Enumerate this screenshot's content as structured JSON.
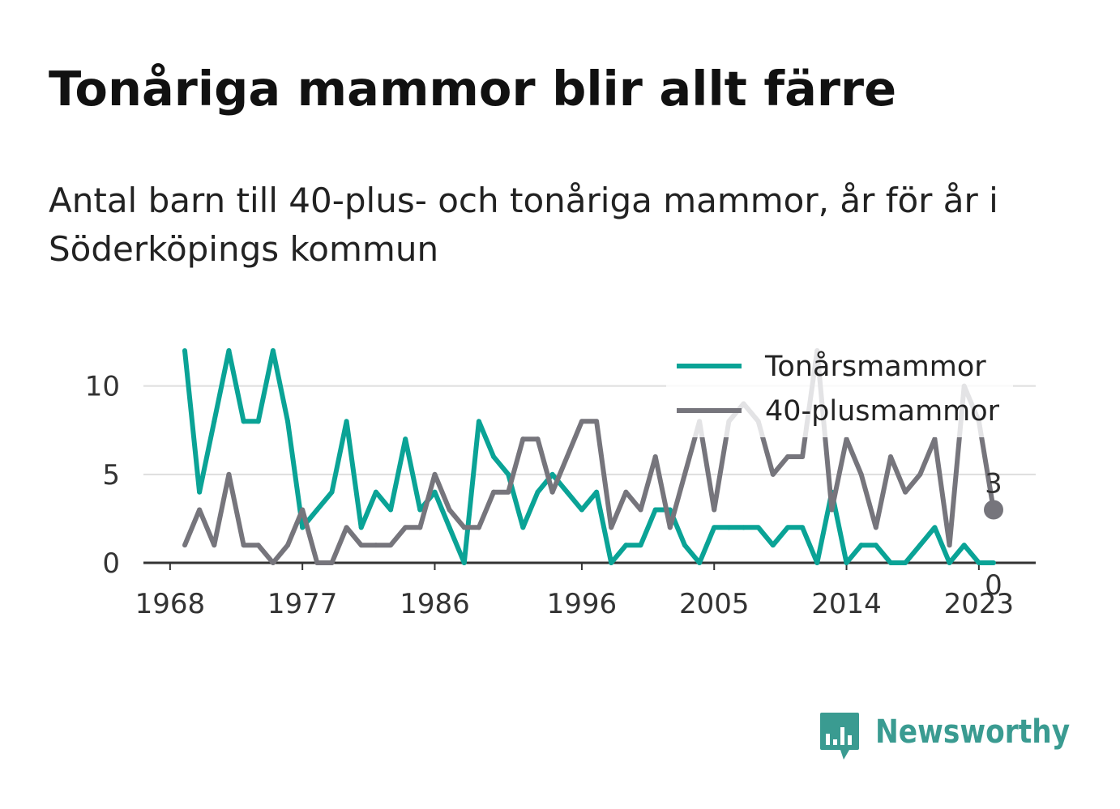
{
  "colors": {
    "title": "#111111",
    "subtitle": "#222222",
    "tick_text": "#333333",
    "grid": "#dedede",
    "axis": "#333333",
    "legend_background": "#ffffff",
    "brand": "#3a9b91"
  },
  "brand": {
    "name": "Newsworthy",
    "icon": "bar-chart-speech-bubble-icon"
  },
  "chart_data": {
    "type": "line",
    "title": "Tonåriga mammor blir allt färre",
    "subtitle": "Antal barn till 40-plus- och tonåriga mammor, år för år i Söderköpings kommun",
    "xlabel": "",
    "ylabel": "",
    "x": [
      1969,
      1970,
      1971,
      1972,
      1973,
      1974,
      1975,
      1976,
      1977,
      1978,
      1979,
      1980,
      1981,
      1982,
      1983,
      1984,
      1985,
      1986,
      1987,
      1988,
      1989,
      1990,
      1991,
      1992,
      1993,
      1994,
      1995,
      1996,
      1997,
      1998,
      1999,
      2000,
      2001,
      2002,
      2003,
      2004,
      2005,
      2006,
      2007,
      2008,
      2009,
      2010,
      2011,
      2012,
      2013,
      2014,
      2015,
      2016,
      2017,
      2018,
      2019,
      2020,
      2021,
      2022,
      2023,
      2024
    ],
    "x_ticks": [
      1968,
      1977,
      1986,
      1996,
      2005,
      2014,
      2023
    ],
    "y_ticks": [
      0,
      5,
      10
    ],
    "ylim": [
      0,
      12
    ],
    "grid": true,
    "legend": "top-right",
    "end_value_labels": true,
    "series": [
      {
        "name": "Tonårsmammor",
        "color": "#0aa396",
        "values": [
          12,
          4,
          8,
          12,
          8,
          8,
          12,
          8,
          2,
          3,
          4,
          8,
          2,
          4,
          3,
          7,
          3,
          4,
          2,
          0,
          8,
          6,
          5,
          2,
          4,
          5,
          4,
          3,
          4,
          0,
          1,
          1,
          3,
          3,
          1,
          0,
          2,
          2,
          2,
          2,
          1,
          2,
          2,
          0,
          4,
          0,
          1,
          1,
          0,
          0,
          1,
          2,
          0,
          1,
          0,
          0
        ]
      },
      {
        "name": "40-plusmammor",
        "color": "#76757c",
        "end_marker": true,
        "values": [
          1,
          3,
          1,
          5,
          1,
          1,
          0,
          1,
          3,
          0,
          0,
          2,
          1,
          1,
          1,
          2,
          2,
          5,
          3,
          2,
          2,
          4,
          4,
          7,
          7,
          4,
          6,
          8,
          8,
          2,
          4,
          3,
          6,
          2,
          5,
          8,
          3,
          8,
          9,
          8,
          5,
          6,
          6,
          12,
          3,
          7,
          5,
          2,
          6,
          4,
          5,
          7,
          1,
          10,
          8,
          3
        ]
      }
    ]
  }
}
